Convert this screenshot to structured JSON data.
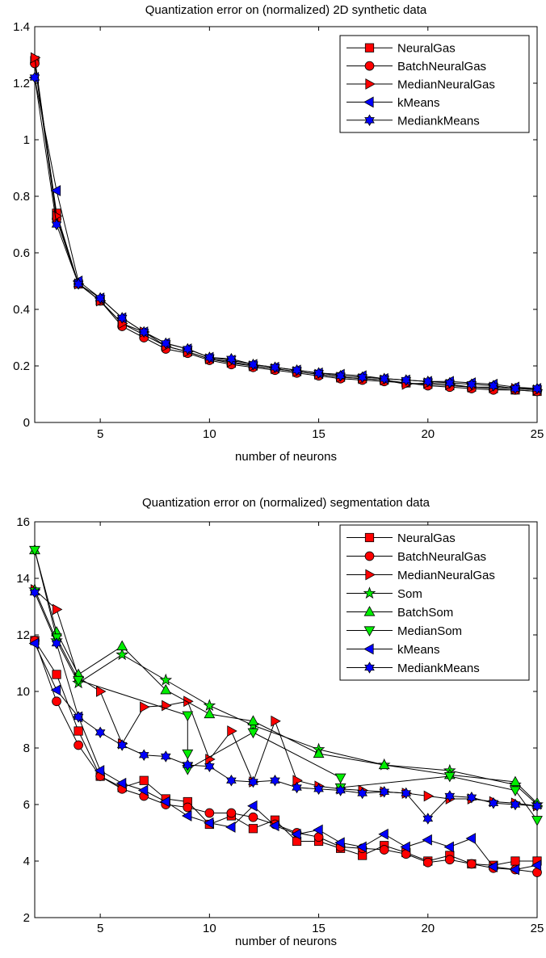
{
  "chart_data": [
    {
      "type": "line",
      "title": "Quantization error on (normalized) 2D synthetic data",
      "xlabel": "number of neurons",
      "ylabel": "",
      "xlim": [
        2,
        25
      ],
      "ylim": [
        0,
        1.4
      ],
      "xticks": [
        5,
        10,
        15,
        20,
        25
      ],
      "yticks": [
        0,
        0.2,
        0.4,
        0.6,
        0.8,
        1,
        1.2,
        1.4
      ],
      "ytick_labels": [
        "0",
        "0.2",
        "0.4",
        "0.6",
        "0.8",
        "1",
        "1.2",
        "1.4"
      ],
      "legend_position": "top-right",
      "x": [
        2,
        3,
        4,
        5,
        6,
        7,
        8,
        9,
        10,
        11,
        12,
        13,
        14,
        15,
        16,
        17,
        18,
        19,
        20,
        21,
        22,
        23,
        24,
        25
      ],
      "series": [
        {
          "name": "NeuralGas",
          "color": "#ff0000",
          "marker": "square",
          "values": [
            1.28,
            0.74,
            0.49,
            0.43,
            0.35,
            0.31,
            0.27,
            0.25,
            0.225,
            0.21,
            0.2,
            0.19,
            0.18,
            0.17,
            0.16,
            0.155,
            0.15,
            0.14,
            0.135,
            0.13,
            0.125,
            0.12,
            0.115,
            0.11
          ]
        },
        {
          "name": "BatchNeuralGas",
          "color": "#ff0000",
          "marker": "circle",
          "values": [
            1.27,
            0.72,
            0.49,
            0.43,
            0.34,
            0.3,
            0.26,
            0.245,
            0.22,
            0.205,
            0.195,
            0.185,
            0.175,
            0.165,
            0.155,
            0.15,
            0.145,
            0.14,
            0.13,
            0.125,
            0.12,
            0.115,
            0.115,
            0.11
          ]
        },
        {
          "name": "MedianNeuralGas",
          "color": "#ff0000",
          "marker": "triangle-right",
          "values": [
            1.29,
            0.73,
            0.49,
            0.43,
            0.35,
            0.32,
            0.27,
            0.25,
            0.225,
            0.215,
            0.2,
            0.19,
            0.18,
            0.17,
            0.16,
            0.155,
            0.15,
            0.135,
            0.14,
            0.135,
            0.125,
            0.125,
            0.12,
            0.115
          ]
        },
        {
          "name": "kMeans",
          "color": "#0000ff",
          "marker": "triangle-left",
          "values": [
            1.22,
            0.82,
            0.5,
            0.44,
            0.37,
            0.32,
            0.28,
            0.26,
            0.23,
            0.22,
            0.205,
            0.195,
            0.185,
            0.175,
            0.17,
            0.165,
            0.155,
            0.15,
            0.145,
            0.145,
            0.14,
            0.135,
            0.125,
            0.12
          ]
        },
        {
          "name": "MediankMeans",
          "color": "#0000ff",
          "marker": "hexagram",
          "values": [
            1.22,
            0.7,
            0.49,
            0.44,
            0.37,
            0.32,
            0.28,
            0.26,
            0.23,
            0.225,
            0.205,
            0.195,
            0.185,
            0.175,
            0.165,
            0.16,
            0.155,
            0.15,
            0.145,
            0.14,
            0.135,
            0.13,
            0.12,
            0.12
          ]
        }
      ]
    },
    {
      "type": "line",
      "title": "Quantization error on (normalized) segmentation data",
      "xlabel": "number of neurons",
      "ylabel": "",
      "xlim": [
        2,
        25
      ],
      "ylim": [
        2,
        16
      ],
      "xticks": [
        5,
        10,
        15,
        20,
        25
      ],
      "yticks": [
        2,
        4,
        6,
        8,
        10,
        12,
        14,
        16
      ],
      "ytick_labels": [
        "2",
        "4",
        "6",
        "8",
        "10",
        "12",
        "14",
        "16"
      ],
      "legend_position": "top-right",
      "series": [
        {
          "name": "NeuralGas",
          "color": "#ff0000",
          "marker": "square",
          "x": [
            2,
            3,
            4,
            5,
            6,
            7,
            8,
            9,
            10,
            11,
            12,
            13,
            14,
            15,
            16,
            17,
            18,
            19,
            20,
            21,
            22,
            23,
            24,
            25
          ],
          "values": [
            11.8,
            10.6,
            8.6,
            7.0,
            6.6,
            6.85,
            6.2,
            6.1,
            5.3,
            5.6,
            5.15,
            5.45,
            4.7,
            4.7,
            4.45,
            4.2,
            4.55,
            4.3,
            4.0,
            4.2,
            3.9,
            3.85,
            4.0,
            4.0
          ]
        },
        {
          "name": "BatchNeuralGas",
          "color": "#ff0000",
          "marker": "circle",
          "x": [
            2,
            3,
            4,
            5,
            6,
            7,
            8,
            9,
            10,
            11,
            12,
            13,
            14,
            15,
            16,
            17,
            18,
            19,
            20,
            21,
            22,
            23,
            24,
            25
          ],
          "values": [
            11.8,
            9.65,
            8.1,
            7.0,
            6.55,
            6.3,
            6.0,
            5.9,
            5.7,
            5.7,
            5.55,
            5.3,
            5.0,
            4.85,
            4.5,
            4.45,
            4.4,
            4.25,
            3.95,
            4.05,
            3.9,
            3.75,
            3.7,
            3.6
          ]
        },
        {
          "name": "MedianNeuralGas",
          "color": "#ff0000",
          "marker": "triangle-right",
          "x": [
            2,
            3,
            4,
            5,
            6,
            7,
            8,
            9,
            10,
            11,
            12,
            13,
            14,
            15,
            16,
            17,
            18,
            19,
            20,
            21,
            22,
            23,
            24,
            25
          ],
          "values": [
            13.6,
            12.9,
            10.5,
            10.0,
            8.15,
            9.45,
            9.5,
            9.65,
            7.6,
            8.6,
            6.8,
            8.95,
            6.85,
            6.65,
            6.55,
            6.5,
            6.45,
            6.4,
            6.3,
            6.2,
            6.2,
            6.1,
            6.05,
            5.95
          ]
        },
        {
          "name": "Som",
          "color": "#00ee00",
          "marker": "pentagram",
          "x": [
            2,
            3,
            4,
            6,
            8,
            10,
            12,
            15,
            18,
            21,
            24,
            25
          ],
          "values": [
            13.6,
            11.8,
            10.3,
            11.3,
            10.4,
            9.5,
            8.8,
            7.95,
            7.4,
            7.2,
            6.7,
            6.0
          ]
        },
        {
          "name": "BatchSom",
          "color": "#00ee00",
          "marker": "triangle-up",
          "x": [
            2,
            3,
            4,
            6,
            8,
            10,
            12,
            15,
            18,
            21,
            24,
            25
          ],
          "values": [
            15.0,
            12.1,
            10.6,
            11.6,
            10.05,
            9.2,
            8.95,
            7.8,
            7.4,
            7.05,
            6.8,
            6.05
          ]
        },
        {
          "name": "MedianSom",
          "color": "#00ee00",
          "marker": "triangle-down",
          "x": [
            2,
            3,
            4,
            9,
            9,
            9,
            9,
            12,
            16,
            16,
            21,
            24,
            25
          ],
          "values": [
            15.0,
            11.9,
            10.4,
            9.15,
            7.8,
            7.35,
            7.25,
            8.55,
            6.95,
            6.6,
            7.0,
            6.5,
            5.45
          ]
        },
        {
          "name": "kMeans",
          "color": "#0000ff",
          "marker": "triangle-left",
          "x": [
            2,
            3,
            4,
            5,
            6,
            7,
            8,
            9,
            10,
            11,
            12,
            13,
            14,
            15,
            16,
            17,
            18,
            19,
            20,
            21,
            22,
            23,
            24,
            25
          ],
          "values": [
            11.7,
            10.05,
            9.1,
            7.2,
            6.75,
            6.5,
            6.1,
            5.6,
            5.35,
            5.2,
            5.95,
            5.25,
            4.95,
            5.1,
            4.65,
            4.5,
            4.95,
            4.5,
            4.75,
            4.5,
            4.8,
            3.8,
            3.7,
            3.85
          ]
        },
        {
          "name": "MediankMeans",
          "color": "#0000ff",
          "marker": "hexagram",
          "x": [
            2,
            3,
            4,
            5,
            6,
            7,
            8,
            9,
            10,
            11,
            12,
            13,
            14,
            15,
            16,
            17,
            18,
            19,
            20,
            21,
            22,
            23,
            24,
            25
          ],
          "values": [
            13.5,
            11.7,
            9.1,
            8.55,
            8.1,
            7.75,
            7.7,
            7.4,
            7.35,
            6.85,
            6.8,
            6.85,
            6.6,
            6.55,
            6.5,
            6.4,
            6.45,
            6.4,
            5.5,
            6.3,
            6.25,
            6.05,
            6.0,
            5.95
          ]
        }
      ]
    }
  ]
}
